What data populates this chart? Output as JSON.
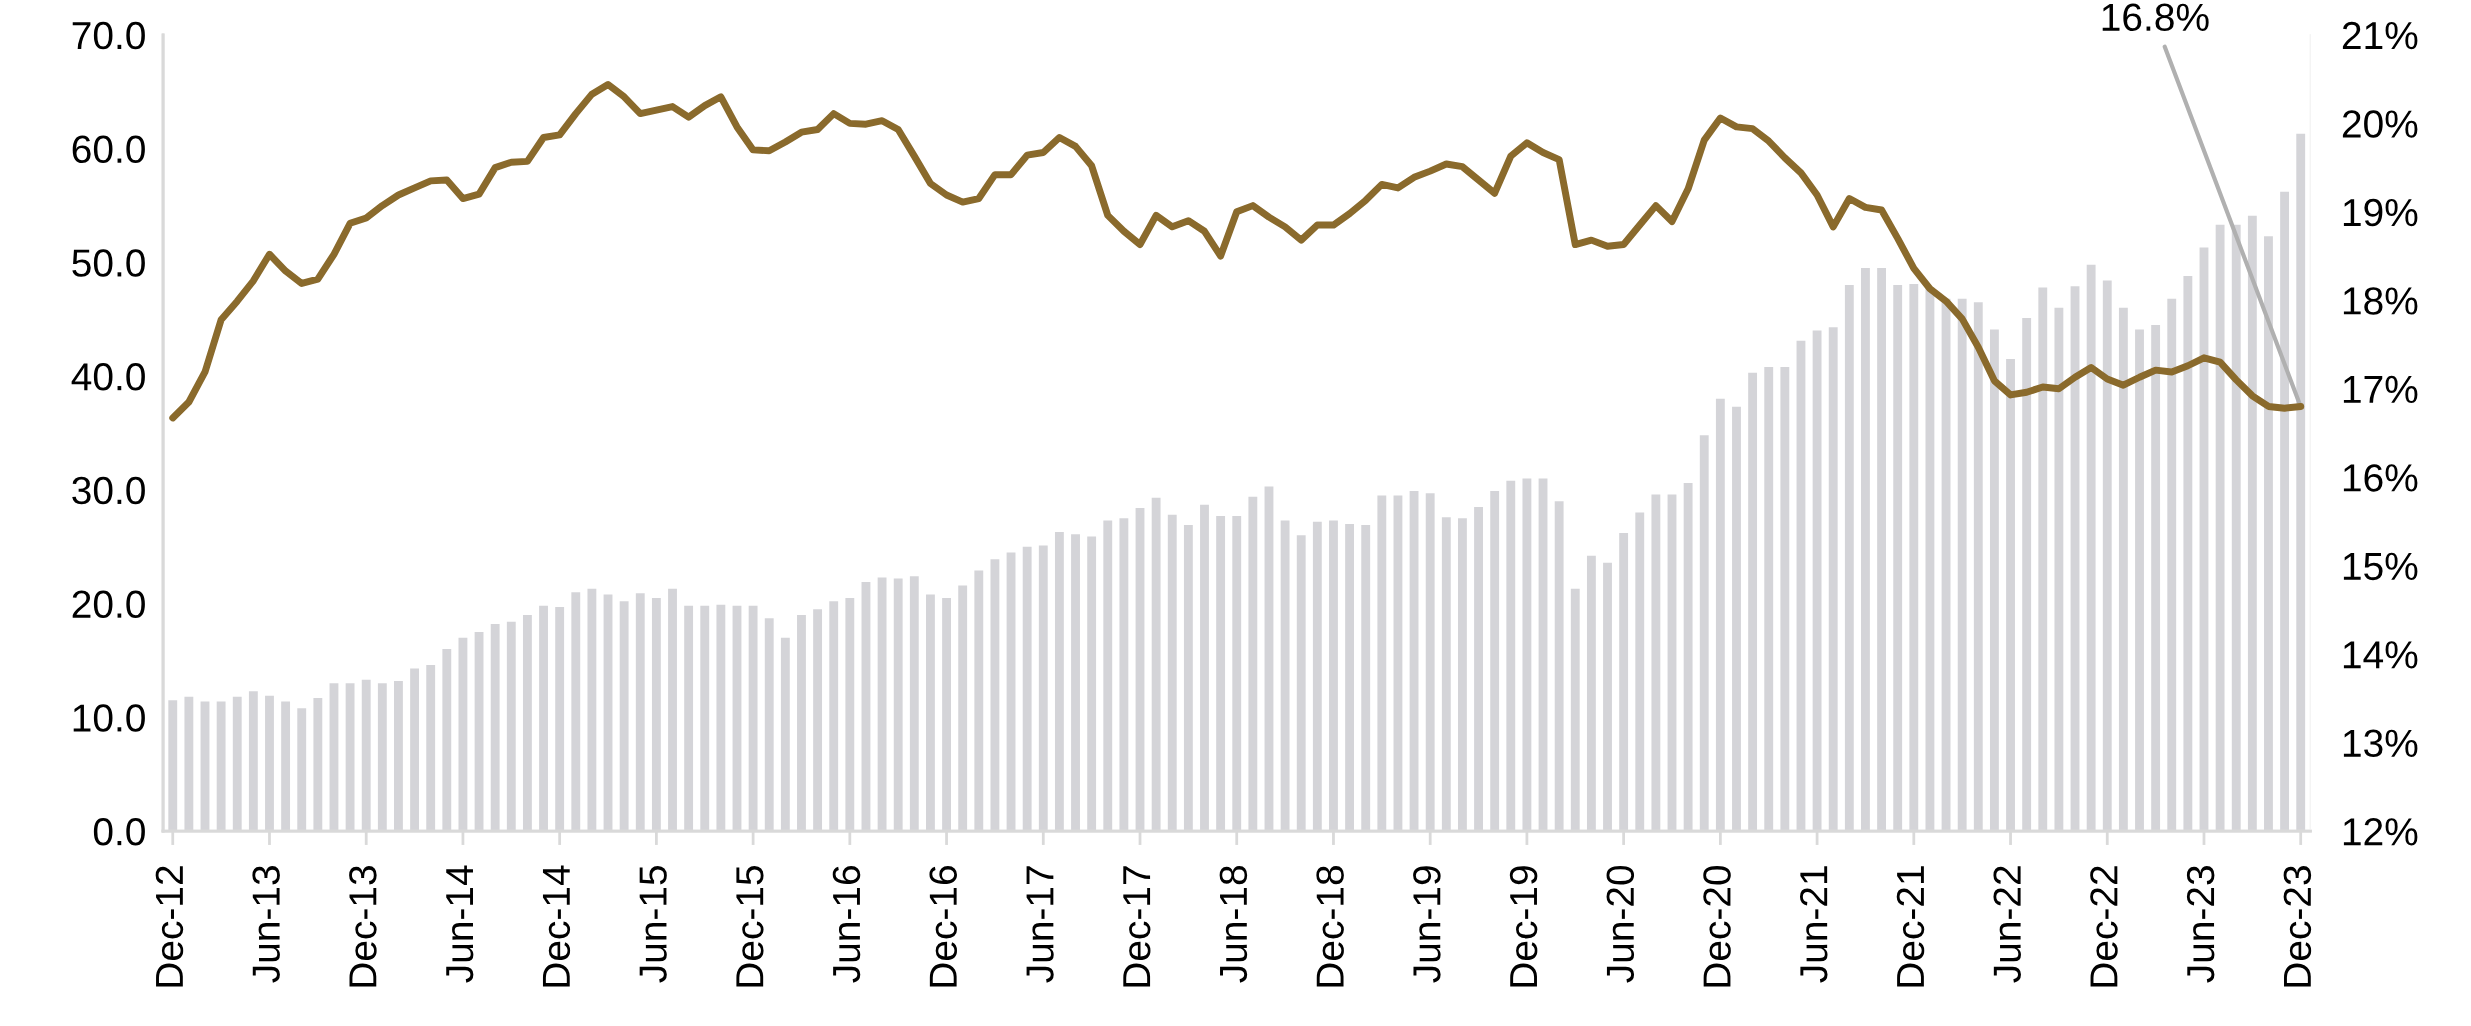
{
  "chart_data": {
    "type": "bar",
    "categories": [
      "Dec-12",
      null,
      null,
      null,
      null,
      null,
      "Jun-13",
      null,
      null,
      null,
      null,
      null,
      "Dec-13",
      null,
      null,
      null,
      null,
      null,
      "Jun-14",
      null,
      null,
      null,
      null,
      null,
      "Dec-14",
      null,
      null,
      null,
      null,
      null,
      "Jun-15",
      null,
      null,
      null,
      null,
      null,
      "Dec-15",
      null,
      null,
      null,
      null,
      null,
      "Jun-16",
      null,
      null,
      null,
      null,
      null,
      "Dec-16",
      null,
      null,
      null,
      null,
      null,
      "Jun-17",
      null,
      null,
      null,
      null,
      null,
      "Dec-17",
      null,
      null,
      null,
      null,
      null,
      "Jun-18",
      null,
      null,
      null,
      null,
      null,
      "Dec-18",
      null,
      null,
      null,
      null,
      null,
      "Jun-19",
      null,
      null,
      null,
      null,
      null,
      "Dec-19",
      null,
      null,
      null,
      null,
      null,
      "Jun-20",
      null,
      null,
      null,
      null,
      null,
      "Dec-20",
      null,
      null,
      null,
      null,
      null,
      "Jun-21",
      null,
      null,
      null,
      null,
      null,
      "Dec-21",
      null,
      null,
      null,
      null,
      null,
      "Jun-22",
      null,
      null,
      null,
      null,
      null,
      "Dec-22",
      null,
      null,
      null,
      null,
      null,
      "Jun-23",
      null,
      null,
      null,
      null,
      null,
      "Dec-23"
    ],
    "series": [
      {
        "type": "bar",
        "color": "#d4d4d8",
        "values": [
          11.5,
          11.8,
          11.4,
          11.4,
          11.8,
          12.3,
          11.9,
          11.4,
          10.8,
          11.7,
          13.0,
          13.0,
          13.3,
          13.0,
          13.2,
          14.3,
          14.6,
          16.0,
          17.0,
          17.5,
          18.2,
          18.4,
          19.0,
          19.8,
          19.7,
          21.0,
          21.3,
          20.8,
          20.2,
          20.9,
          20.5,
          21.3,
          19.8,
          19.8,
          19.9,
          19.8,
          19.8,
          18.7,
          17.0,
          19.0,
          19.5,
          20.2,
          20.5,
          21.9,
          22.3,
          22.2,
          22.4,
          20.8,
          20.5,
          21.6,
          22.9,
          23.9,
          24.5,
          25.0,
          25.1,
          26.3,
          26.1,
          25.9,
          27.3,
          27.5,
          28.4,
          29.3,
          27.8,
          26.9,
          28.7,
          27.7,
          27.7,
          29.4,
          30.3,
          27.3,
          26.0,
          27.2,
          27.3,
          27.0,
          26.9,
          29.5,
          29.5,
          29.9,
          29.7,
          27.6,
          27.5,
          28.5,
          29.9,
          30.8,
          31.0,
          31.0,
          29.0,
          21.3,
          24.2,
          23.6,
          26.2,
          28.0,
          29.6,
          29.6,
          30.6,
          34.8,
          38.0,
          37.3,
          40.3,
          40.8,
          40.8,
          43.1,
          44.0,
          44.3,
          48.0,
          49.5,
          49.5,
          48.0,
          48.1,
          47.8,
          46.8,
          46.8,
          46.5,
          44.1,
          41.5,
          45.1,
          47.8,
          46.0,
          47.9,
          49.8,
          48.4,
          46.0,
          44.1,
          44.5,
          46.8,
          48.8,
          51.3,
          53.3,
          53.3,
          54.1,
          52.3,
          56.2,
          61.3
        ]
      },
      {
        "type": "line",
        "axis": "y2",
        "color": "#8a6a2c",
        "values": [
          16.67,
          16.85,
          17.19,
          17.78,
          17.99,
          18.22,
          18.52,
          18.33,
          18.19,
          18.24,
          18.52,
          18.87,
          18.93,
          19.07,
          19.19,
          19.27,
          19.35,
          19.36,
          19.15,
          19.2,
          19.5,
          19.56,
          19.57,
          19.84,
          19.87,
          20.11,
          20.33,
          20.44,
          20.3,
          20.11,
          20.15,
          20.19,
          20.07,
          20.2,
          20.3,
          19.96,
          19.7,
          19.69,
          19.79,
          19.9,
          19.93,
          20.11,
          20.0,
          19.99,
          20.03,
          19.93,
          19.63,
          19.32,
          19.19,
          19.11,
          19.15,
          19.42,
          19.42,
          19.64,
          19.67,
          19.84,
          19.74,
          19.52,
          18.96,
          18.78,
          18.63,
          18.96,
          18.83,
          18.9,
          18.78,
          18.5,
          19.0,
          19.07,
          18.94,
          18.83,
          18.68,
          18.85,
          18.85,
          18.98,
          19.13,
          19.31,
          19.27,
          19.39,
          19.46,
          19.54,
          19.51,
          19.36,
          19.21,
          19.63,
          19.78,
          19.67,
          19.59,
          18.63,
          18.68,
          18.61,
          18.63,
          18.85,
          19.07,
          18.89,
          19.26,
          19.81,
          20.06,
          19.96,
          19.94,
          19.8,
          19.61,
          19.44,
          19.19,
          18.83,
          19.15,
          19.05,
          19.02,
          18.7,
          18.36,
          18.13,
          17.99,
          17.79,
          17.47,
          17.09,
          16.93,
          16.96,
          17.02,
          17.0,
          17.13,
          17.24,
          17.11,
          17.04,
          17.13,
          17.21,
          17.19,
          17.26,
          17.35,
          17.3,
          17.1,
          16.92,
          16.8,
          16.78,
          16.8
        ]
      }
    ],
    "ylim": [
      0,
      70
    ],
    "yticks": [
      {
        "value": 0,
        "label": "0.0"
      },
      {
        "value": 10,
        "label": "10.0"
      },
      {
        "value": 20,
        "label": "20.0"
      },
      {
        "value": 30,
        "label": "30.0"
      },
      {
        "value": 40,
        "label": "40.0"
      },
      {
        "value": 50,
        "label": "50.0"
      },
      {
        "value": 60,
        "label": "60.0"
      },
      {
        "value": 70,
        "label": "70.0"
      }
    ],
    "y2lim": [
      12,
      21
    ],
    "y2ticks": [
      {
        "value": 12,
        "label": "12%"
      },
      {
        "value": 13,
        "label": "13%"
      },
      {
        "value": 14,
        "label": "14%"
      },
      {
        "value": 15,
        "label": "15%"
      },
      {
        "value": 16,
        "label": "16%"
      },
      {
        "value": 17,
        "label": "17%"
      },
      {
        "value": 18,
        "label": "18%"
      },
      {
        "value": 19,
        "label": "19%"
      },
      {
        "value": 20,
        "label": "20%"
      },
      {
        "value": 21,
        "label": "21%"
      }
    ],
    "annotations": [
      {
        "text": "16.8%",
        "x": "Dec-23",
        "y": 37.3
      }
    ]
  }
}
